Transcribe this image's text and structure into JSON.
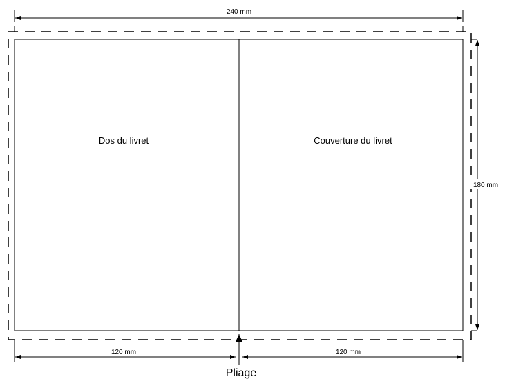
{
  "dimensions": {
    "total_width": "240  mm",
    "height": "180 mm",
    "left_width": "120 mm",
    "right_width": "120 mm"
  },
  "panels": {
    "left": "Dos du livret",
    "right": "Couverture du livret"
  },
  "fold": {
    "label": "Pliage"
  }
}
